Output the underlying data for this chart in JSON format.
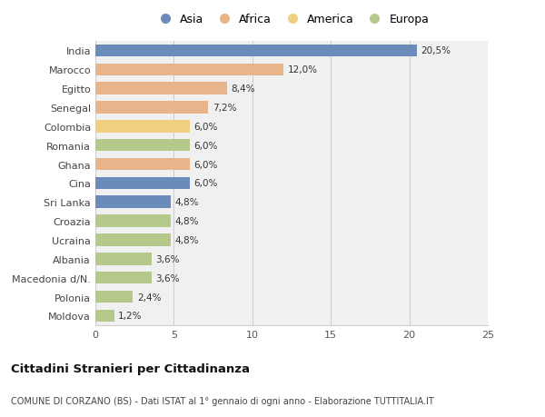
{
  "categories": [
    "India",
    "Marocco",
    "Egitto",
    "Senegal",
    "Colombia",
    "Romania",
    "Ghana",
    "Cina",
    "Sri Lanka",
    "Croazia",
    "Ucraina",
    "Albania",
    "Macedonia d/N.",
    "Polonia",
    "Moldova"
  ],
  "values": [
    20.5,
    12.0,
    8.4,
    7.2,
    6.0,
    6.0,
    6.0,
    6.0,
    4.8,
    4.8,
    4.8,
    3.6,
    3.6,
    2.4,
    1.2
  ],
  "labels": [
    "20,5%",
    "12,0%",
    "8,4%",
    "7,2%",
    "6,0%",
    "6,0%",
    "6,0%",
    "6,0%",
    "4,8%",
    "4,8%",
    "4,8%",
    "3,6%",
    "3,6%",
    "2,4%",
    "1,2%"
  ],
  "colors": [
    "#6b8cba",
    "#e8b48a",
    "#e8b48a",
    "#e8b48a",
    "#f0d080",
    "#b5c98a",
    "#e8b48a",
    "#6b8cba",
    "#6b8cba",
    "#b5c98a",
    "#b5c98a",
    "#b5c98a",
    "#b5c98a",
    "#b5c98a",
    "#b5c98a"
  ],
  "legend_labels": [
    "Asia",
    "Africa",
    "America",
    "Europa"
  ],
  "legend_colors": [
    "#6b8cba",
    "#e8b48a",
    "#f0d080",
    "#b5c98a"
  ],
  "title": "Cittadini Stranieri per Cittadinanza",
  "subtitle": "COMUNE DI CORZANO (BS) - Dati ISTAT al 1° gennaio di ogni anno - Elaborazione TUTTITALIA.IT",
  "xlim": [
    0,
    25
  ],
  "xticks": [
    0,
    5,
    10,
    15,
    20,
    25
  ],
  "background_color": "#ffffff",
  "bar_background": "#f0f0f0"
}
